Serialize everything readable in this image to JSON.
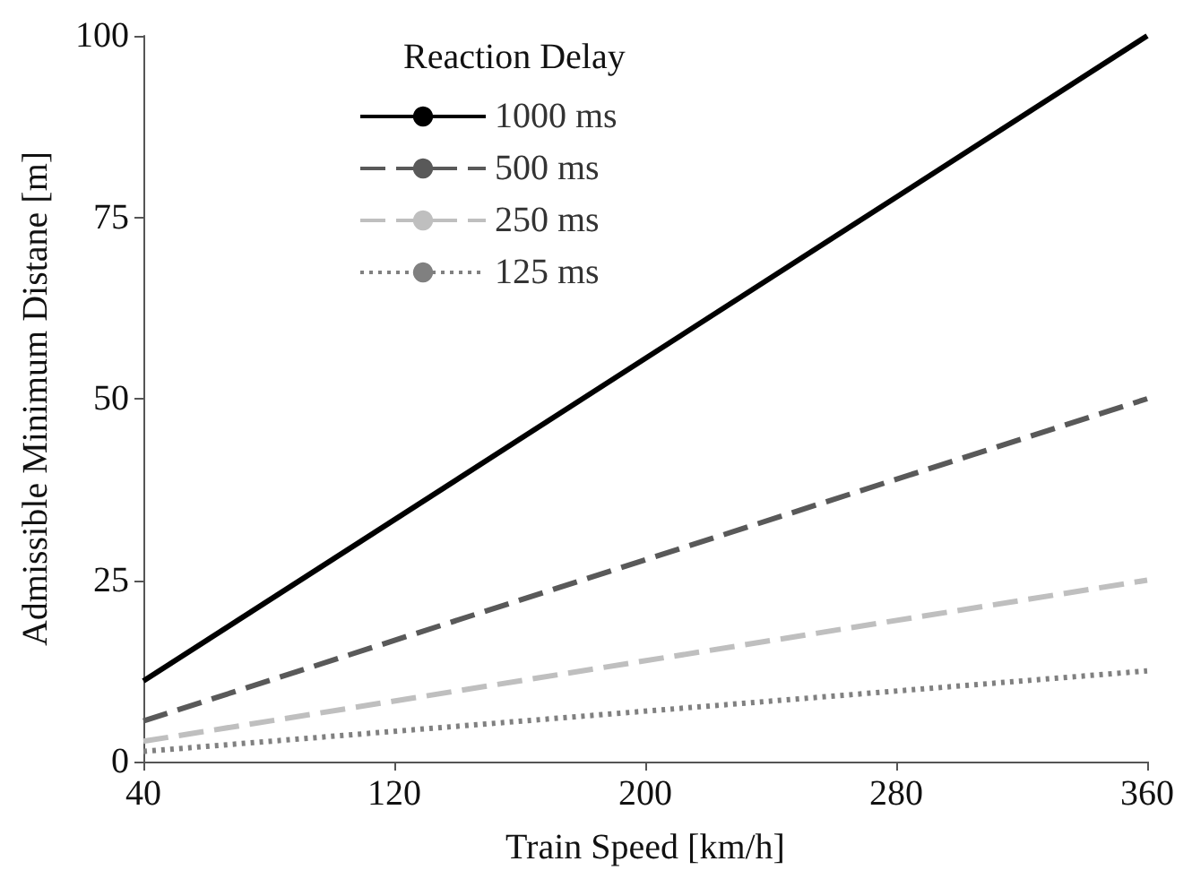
{
  "chart_data": {
    "type": "line",
    "xlabel": "Train Speed [km/h]",
    "ylabel": "Admissible Minimum Distane [m]",
    "legend_title": "Reaction Delay",
    "x": [
      40,
      360
    ],
    "series": [
      {
        "name": "1000 ms",
        "color": "#000000",
        "values": [
          11.1,
          100
        ],
        "line_style": "solid"
      },
      {
        "name": "500 ms",
        "color": "#595959",
        "values": [
          5.6,
          50
        ],
        "line_style": "dashed"
      },
      {
        "name": "250 ms",
        "color": "#bfbfbf",
        "values": [
          2.8,
          25
        ],
        "line_style": "dashed"
      },
      {
        "name": "125 ms",
        "color": "#808080",
        "values": [
          1.4,
          12.5
        ],
        "line_style": "dotted"
      }
    ],
    "xlim": [
      40,
      360
    ],
    "xticks": [
      40,
      120,
      200,
      280,
      360
    ],
    "ylim": [
      0,
      100
    ],
    "yticks": [
      0,
      25,
      50,
      75,
      100
    ],
    "grid": false,
    "legend": "top left",
    "marker": "none"
  }
}
